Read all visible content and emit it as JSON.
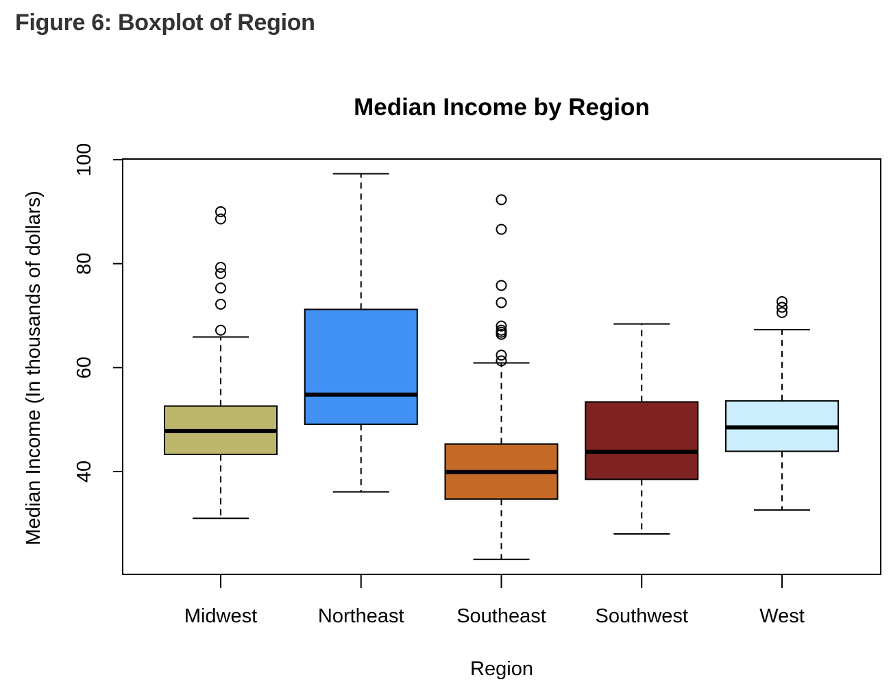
{
  "figure": {
    "caption": "Figure 6: Boxplot of Region"
  },
  "chart_data": {
    "type": "boxplot",
    "title": "Median Income by Region",
    "xlabel": "Region",
    "ylabel": "Median Income (In thousands of dollars)",
    "ylim": [
      20,
      100
    ],
    "yticks": [
      40,
      60,
      80,
      100
    ],
    "grid": false,
    "categories": [
      "Midwest",
      "Northeast",
      "Southeast",
      "Southwest",
      "West"
    ],
    "boxes": [
      {
        "name": "Midwest",
        "color": "#BDB76B",
        "whisker_low": 31,
        "q1": 43.3,
        "median": 47.8,
        "q3": 52.6,
        "whisker_high": 65.9,
        "outliers": [
          67.2,
          72.2,
          75.3,
          78.1,
          79.3,
          88.6,
          90.0
        ]
      },
      {
        "name": "Northeast",
        "color": "#4191F5",
        "whisker_low": 36.1,
        "q1": 49.1,
        "median": 54.8,
        "q3": 71.2,
        "whisker_high": 97.3,
        "outliers": []
      },
      {
        "name": "Southeast",
        "color": "#C46A26",
        "whisker_low": 23.1,
        "q1": 34.7,
        "median": 39.9,
        "q3": 45.3,
        "whisker_high": 60.9,
        "outliers": [
          61.3,
          62.4,
          66.4,
          66.8,
          67.2,
          68.0,
          72.5,
          75.8,
          86.6,
          92.3
        ]
      },
      {
        "name": "Southwest",
        "color": "#7F2322",
        "whisker_low": 28.0,
        "q1": 38.5,
        "median": 43.8,
        "q3": 53.4,
        "whisker_high": 68.4,
        "outliers": []
      },
      {
        "name": "West",
        "color": "#CBEDFD",
        "whisker_low": 32.6,
        "q1": 43.9,
        "median": 48.5,
        "q3": 53.6,
        "whisker_high": 67.3,
        "outliers": [
          70.6,
          71.6,
          72.7
        ]
      }
    ]
  }
}
